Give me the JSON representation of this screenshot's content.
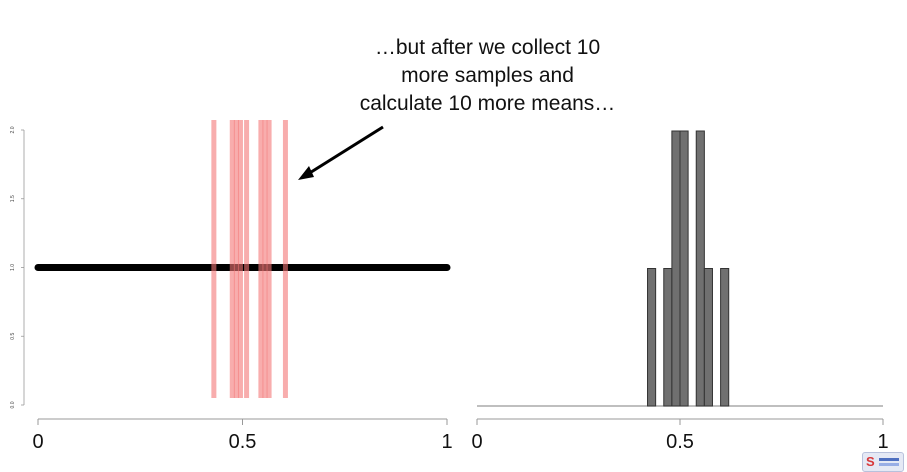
{
  "annotation": {
    "lines": [
      "…but after we collect 10",
      "more samples and",
      "calculate 10 more means…"
    ]
  },
  "colors": {
    "mean_line": "#f37676",
    "uniform_line": "#000000",
    "bar_fill": "#707070",
    "bar_stroke": "#333333",
    "axis": "#999999",
    "text": "#111111"
  },
  "logo": {
    "icon": "statquest-logo-icon"
  },
  "chart_data": [
    {
      "type": "line",
      "title": "",
      "xlabel": "",
      "ylabel": "",
      "xlim": [
        0,
        1
      ],
      "ylim": [
        0,
        2
      ],
      "x_ticks": [
        0,
        0.5,
        1
      ],
      "x_tick_labels": [
        "0",
        "0.5",
        "1"
      ],
      "y_ticks": [
        0,
        0.5,
        1,
        1.5,
        2
      ],
      "y_tick_labels": [
        "0.0",
        "0.5",
        "1.0",
        "1.5",
        "2.0"
      ],
      "series": [
        {
          "x": [
            0,
            1
          ],
          "y": [
            1,
            1
          ]
        }
      ],
      "vertical_lines": [
        0.43,
        0.475,
        0.485,
        0.495,
        0.51,
        0.545,
        0.555,
        0.565,
        0.605
      ]
    },
    {
      "type": "bar",
      "title": "",
      "xlabel": "",
      "ylabel": "",
      "xlim": [
        0,
        1
      ],
      "ylim": [
        0,
        2
      ],
      "x_ticks": [
        0,
        0.5,
        1
      ],
      "x_tick_labels": [
        "0",
        "0.5",
        "1"
      ],
      "bin_width": 0.02,
      "bins": [
        {
          "x": 0.43,
          "count": 1
        },
        {
          "x": 0.47,
          "count": 1
        },
        {
          "x": 0.49,
          "count": 2
        },
        {
          "x": 0.51,
          "count": 2
        },
        {
          "x": 0.55,
          "count": 2
        },
        {
          "x": 0.57,
          "count": 1
        },
        {
          "x": 0.61,
          "count": 1
        }
      ]
    }
  ]
}
